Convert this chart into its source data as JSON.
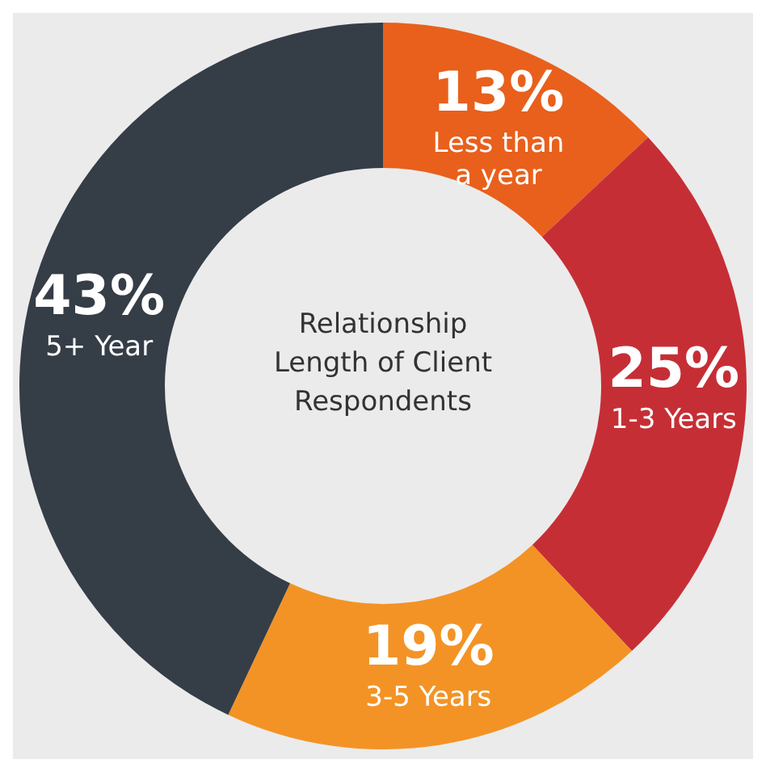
{
  "chart_data": {
    "type": "donut",
    "title": "Relationship Length of Client Respondents",
    "categories": [
      "Less than a year",
      "1-3 Years",
      "3-5 Years",
      "5+ Year"
    ],
    "values": [
      13,
      25,
      19,
      43
    ],
    "value_labels": [
      "13%",
      "25%",
      "19%",
      "43%"
    ],
    "colors": [
      "#e8601c",
      "#c62e35",
      "#f39325",
      "#353d47"
    ],
    "legend": false
  }
}
